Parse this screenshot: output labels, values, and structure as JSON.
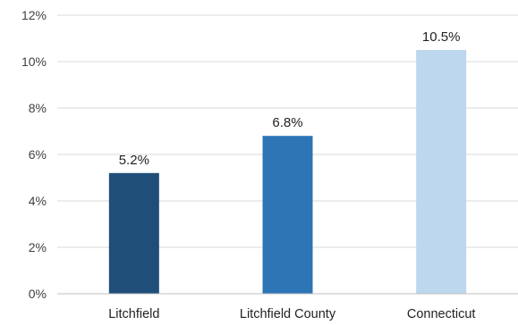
{
  "chart_data": {
    "type": "bar",
    "title": "",
    "xlabel": "",
    "ylabel": "",
    "categories": [
      "Litchfield",
      "Litchfield County",
      "Connecticut"
    ],
    "values": [
      5.2,
      6.8,
      10.5
    ],
    "data_labels": [
      "5.2%",
      "6.8%",
      "10.5%"
    ],
    "bar_colors": [
      "#1f4e79",
      "#2e75b6",
      "#bdd7ee"
    ],
    "ylim": [
      0,
      12
    ],
    "yticks": [
      0,
      2,
      4,
      6,
      8,
      10,
      12
    ],
    "ytick_labels": [
      "0%",
      "2%",
      "4%",
      "6%",
      "8%",
      "10%",
      "12%"
    ],
    "grid": true,
    "legend": "none"
  }
}
